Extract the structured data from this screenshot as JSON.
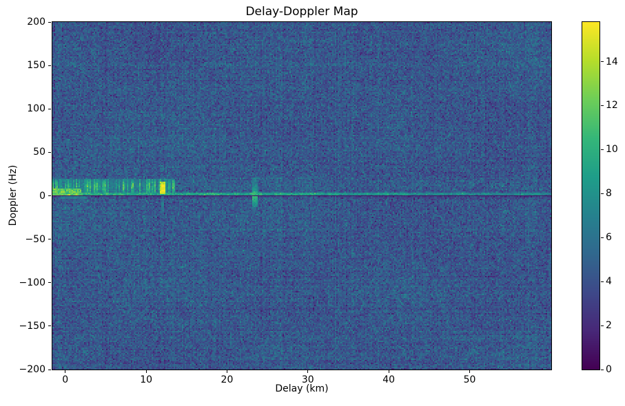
{
  "chart_data": {
    "type": "heatmap",
    "title": "Delay-Doppler Map",
    "x_axis": {
      "label": "Delay (km)",
      "range": [
        -1.6,
        60.1
      ],
      "ticks": [
        {
          "v": 0,
          "label": "0"
        },
        {
          "v": 10,
          "label": "10"
        },
        {
          "v": 20,
          "label": "20"
        },
        {
          "v": 30,
          "label": "30"
        },
        {
          "v": 40,
          "label": "40"
        },
        {
          "v": 50,
          "label": "50"
        }
      ]
    },
    "y_axis": {
      "label": "Doppler (Hz)",
      "range": [
        -200,
        200
      ],
      "ticks": [
        {
          "v": 200,
          "label": "200"
        },
        {
          "v": 150,
          "label": "150"
        },
        {
          "v": 100,
          "label": "100"
        },
        {
          "v": 50,
          "label": "50"
        },
        {
          "v": 0,
          "label": "0"
        },
        {
          "v": -50,
          "label": "−50"
        },
        {
          "v": -100,
          "label": "−100"
        },
        {
          "v": -150,
          "label": "−150"
        },
        {
          "v": -200,
          "label": "−200"
        }
      ]
    },
    "colorbar": {
      "vmin": 0,
      "vmax": 15.8,
      "ticks": [
        {
          "v": 0,
          "label": "0"
        },
        {
          "v": 2,
          "label": "2"
        },
        {
          "v": 4,
          "label": "4"
        },
        {
          "v": 6,
          "label": "6"
        },
        {
          "v": 8,
          "label": "8"
        },
        {
          "v": 10,
          "label": "10"
        },
        {
          "v": 12,
          "label": "12"
        },
        {
          "v": 14,
          "label": "14"
        }
      ]
    },
    "colormap": {
      "name": "viridis",
      "stops": [
        "#440154",
        "#482878",
        "#3e4989",
        "#31688e",
        "#26828e",
        "#1f9e89",
        "#35b779",
        "#6ece58",
        "#b5de2b",
        "#fde725"
      ]
    },
    "noise": {
      "mean": 4.35,
      "std": 1.0,
      "clip": [
        1.1,
        8.3
      ],
      "row_banding": 0.18,
      "col_banding": 0.2,
      "seed": 1234
    },
    "grid": {
      "cols": 362,
      "rows": 253
    },
    "features": [
      {
        "type": "noise_band_boost",
        "doppler": [
          1,
          22
        ],
        "amount": 0.35,
        "desc": "slightly elevated noise across all delays at low positive Doppler"
      },
      {
        "type": "barcode_band",
        "delay": [
          -1.6,
          13.6
        ],
        "doppler": [
          3,
          19.5
        ],
        "base": 5.6,
        "peak": 11,
        "center": 11,
        "width": 10,
        "desc": "intermittent vertical clutter dashes, delay 0-13.5 km, Doppler +3..+20 Hz"
      },
      {
        "type": "blob",
        "delay": [
          -1.6,
          1.9
        ],
        "doppler": [
          0.6,
          9
        ],
        "value": 12.0,
        "jitter": 1.1,
        "desc": "bright return near zero delay just above zero Doppler"
      },
      {
        "type": "blob",
        "delay": [
          11.65,
          12.4
        ],
        "doppler": [
          2.5,
          17
        ],
        "value": 14.2,
        "jitter": 1.0,
        "desc": "strong target at ~12 km delay"
      },
      {
        "type": "blob",
        "delay": [
          11.85,
          12.3
        ],
        "doppler": [
          4,
          13
        ],
        "value": 15.4,
        "jitter": 0.4,
        "desc": "core of ~12 km target, near colormap max"
      },
      {
        "type": "blob",
        "delay": [
          -0.6,
          2.6
        ],
        "doppler": [
          -4.5,
          -1
        ],
        "value": 6.9,
        "jitter": 0.6,
        "desc": "faint return below the zero line near zero delay"
      },
      {
        "type": "vstreak",
        "delay": [
          23.15,
          23.85
        ],
        "doppler": [
          -13,
          21
        ],
        "base": 6.3,
        "peak": 4.6,
        "center": -1,
        "width": 9,
        "desc": "vertical smear at ~23.5 km crossing zero Doppler"
      },
      {
        "type": "vstreak",
        "delay": [
          11.78,
          12.28
        ],
        "doppler": [
          -21,
          -1
        ],
        "base": 5.1,
        "peak": 1.2,
        "center": -8,
        "width": 10,
        "desc": "faint smear below zero Doppler at ~12 km"
      },
      {
        "type": "bright_line",
        "doppler": [
          0.9,
          3.4
        ],
        "base": 9.9,
        "fade_per_km": 0.055,
        "min": 6.1,
        "jitter": 0.85,
        "segments": [
          [
            16.8,
            19.2,
            0.8
          ],
          [
            22.8,
            24.3,
            1.5
          ],
          [
            25.8,
            30.2,
            0.7
          ],
          [
            30.3,
            31.3,
            1.2
          ],
          [
            32.5,
            33.5,
            0.9
          ],
          [
            38.7,
            40.0,
            1.0
          ],
          [
            41.4,
            42.3,
            0.8
          ],
          [
            48.4,
            49.6,
            0.6
          ],
          [
            51.6,
            52.4,
            0.8
          ],
          [
            56.3,
            58.7,
            1.2
          ]
        ],
        "desc": "continuous bright zero-Doppler ridge just above 0 Hz, fading with delay, with brighter patches"
      },
      {
        "type": "dim_band",
        "doppler": [
          -3.2,
          -0.85
        ],
        "amount": 0.65,
        "desc": "slightly darker rows just below the zero line"
      },
      {
        "type": "dark_line",
        "doppler": [
          -0.75,
          0.65
        ],
        "value": 0.55,
        "jitter": 0.3,
        "desc": "dark notch exactly at 0 Hz Doppler across all delays"
      }
    ]
  }
}
